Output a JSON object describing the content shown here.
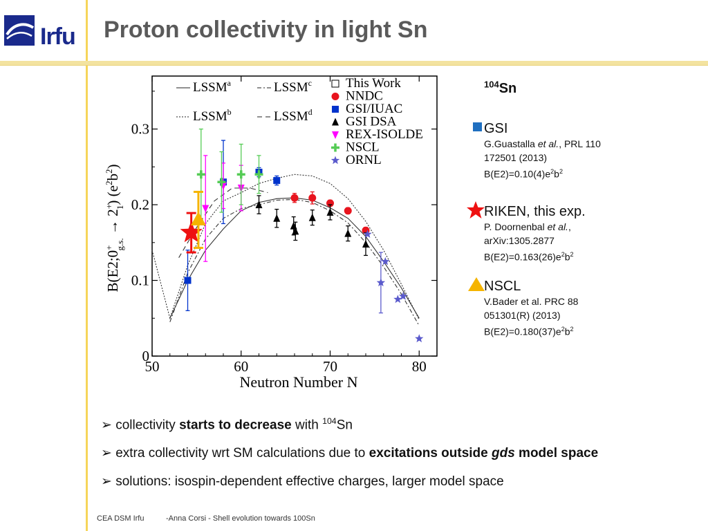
{
  "header": {
    "logo_text": "Irfu",
    "title": "Proton collectivity in light Sn"
  },
  "side": {
    "nucleus_mass": "104",
    "nucleus_symbol": "Sn",
    "gsi": {
      "label": "GSI",
      "ref_author": "G.Guastalla ",
      "ref_etal": "et al.",
      "ref_rest": ", PRL 110",
      "ref_line2": "172501  (2013)",
      "value_prefix": "B(E2)=0.10(4)e",
      "value_sup1": "2",
      "value_b": "b",
      "value_sup2": "2"
    },
    "riken": {
      "label": "RIKEN, this exp.",
      "ref_author": "P. Doornenbal ",
      "ref_etal": "et al.",
      "ref_comma": ",",
      "ref_line2": "arXiv:1305.2877",
      "value_prefix": "B(E2)=0.163(26)e",
      "value_sup1": "2",
      "value_b": "b",
      "value_sup2": "2"
    },
    "nscl": {
      "label": "NSCL",
      "ref_line1": "V.Bader et al. PRC 88",
      "ref_line2": "051301(R) (2013)",
      "value_prefix": "B(E2)=0.180(37)e",
      "value_sup1": "2",
      "value_b": "b",
      "value_sup2": "2"
    }
  },
  "bullets": {
    "b1_pre": "collectivity ",
    "b1_bold": "starts to decrease",
    "b1_post": " with ",
    "b1_sup": "104",
    "b1_end": "Sn",
    "b2_pre": "extra collectivity wrt SM calculations due to ",
    "b2_bold1": "excitations outside ",
    "b2_bolditalic": "gds",
    "b2_bold2": " model space",
    "b3": "solutions: isospin-dependent effective charges, larger model space"
  },
  "footer": {
    "left": "CEA DSM Irfu",
    "center": "-Anna Corsi -   Shell evolution towards 100Sn"
  },
  "colors": {
    "title": "#5a5a5a",
    "gsi": "#0033cc",
    "nndc": "#e8141e",
    "dsa": "#000000",
    "rex": "#ff00ff",
    "nscl_green": "#55cc55",
    "ornl": "#5a5acc",
    "riken_star": "#ee1111",
    "nscl_triangle": "#f5b400"
  },
  "chart_data": {
    "type": "scatter",
    "xlabel": "Neutron Number N",
    "ylabel": "B(E2;0+g.s. → 2+1) (e2b2)",
    "ylabel_parts": {
      "pre": "B(E2;0",
      "sup1": "+",
      "sub1": "g.s.",
      "arrow": " → 2",
      "sup2": "+",
      "sub2": "1",
      "post": ") (e",
      "sup3": "2",
      "b": "b",
      "sup4": "2",
      "close": ")"
    },
    "xlim": [
      50,
      82
    ],
    "ylim": [
      0,
      0.37
    ],
    "xticks": [
      50,
      60,
      70,
      80
    ],
    "yticks": [
      0,
      0.1,
      0.2,
      0.3
    ],
    "ytick_labels": [
      "0",
      "0.1",
      "0.2",
      "0.3"
    ],
    "legend": [
      {
        "label": "LSSM",
        "sup": "a",
        "style": "solid"
      },
      {
        "label": "LSSM",
        "sup": "b",
        "style": "dotted"
      },
      {
        "label": "LSSM",
        "sup": "c",
        "style": "dashdot"
      },
      {
        "label": "LSSM",
        "sup": "d",
        "style": "dashed"
      },
      {
        "label": "This Work",
        "marker": "open-square",
        "color": "#000000"
      },
      {
        "label": "NNDC",
        "marker": "circle",
        "color": "#e8141e"
      },
      {
        "label": "GSI/IUAC",
        "marker": "square",
        "color": "#0033cc"
      },
      {
        "label": "GSI DSA",
        "marker": "triangle-up",
        "color": "#000000"
      },
      {
        "label": "REX-ISOLDE",
        "marker": "triangle-down",
        "color": "#ff00ff"
      },
      {
        "label": "NSCL",
        "marker": "plus",
        "color": "#55cc55"
      },
      {
        "label": "ORNL",
        "marker": "star",
        "color": "#5a5acc"
      }
    ],
    "series": [
      {
        "name": "GSI/IUAC",
        "marker": "square",
        "color": "#0033cc",
        "points": [
          {
            "x": 54,
            "y": 0.1,
            "err": 0.04
          },
          {
            "x": 58,
            "y": 0.23,
            "err": 0.055
          },
          {
            "x": 62,
            "y": 0.243,
            "err": 0.006
          },
          {
            "x": 64,
            "y": 0.232,
            "err": 0.006
          }
        ]
      },
      {
        "name": "NNDC",
        "marker": "circle",
        "color": "#e8141e",
        "points": [
          {
            "x": 66,
            "y": 0.209,
            "err": 0.006
          },
          {
            "x": 68,
            "y": 0.209,
            "err": 0.008
          },
          {
            "x": 70,
            "y": 0.202,
            "err": 0.004
          },
          {
            "x": 72,
            "y": 0.192,
            "err": 0.004
          },
          {
            "x": 74,
            "y": 0.166,
            "err": 0.004
          }
        ]
      },
      {
        "name": "GSI DSA",
        "marker": "triangle-up",
        "color": "#000000",
        "points": [
          {
            "x": 62,
            "y": 0.2,
            "err": 0.012
          },
          {
            "x": 64,
            "y": 0.182,
            "err": 0.012
          },
          {
            "x": 65.9,
            "y": 0.172,
            "err": 0.012
          },
          {
            "x": 66.1,
            "y": 0.165,
            "err": 0.012
          },
          {
            "x": 68,
            "y": 0.183,
            "err": 0.01
          },
          {
            "x": 70,
            "y": 0.19,
            "err": 0.01
          },
          {
            "x": 72,
            "y": 0.162,
            "err": 0.01
          },
          {
            "x": 74,
            "y": 0.148,
            "err": 0.015
          }
        ]
      },
      {
        "name": "REX-ISOLDE",
        "marker": "triangle-down",
        "color": "#ff00ff",
        "points": [
          {
            "x": 56,
            "y": 0.195,
            "err": 0.07
          },
          {
            "x": 58,
            "y": 0.225,
            "err": 0.03
          },
          {
            "x": 60,
            "y": 0.222,
            "err": 0.03
          }
        ]
      },
      {
        "name": "NSCL",
        "marker": "plus",
        "color": "#55cc55",
        "points": [
          {
            "x": 55.5,
            "y": 0.24,
            "err": 0.06
          },
          {
            "x": 57.8,
            "y": 0.23,
            "err": 0.04
          },
          {
            "x": 60,
            "y": 0.24,
            "err": 0.04
          },
          {
            "x": 62,
            "y": 0.24,
            "err": 0.025
          }
        ]
      },
      {
        "name": "ORNL",
        "marker": "star",
        "color": "#5a5acc",
        "points": [
          {
            "x": 74.2,
            "y": 0.161,
            "err": 0.0
          },
          {
            "x": 75.7,
            "y": 0.097,
            "err": 0.04
          },
          {
            "x": 76.2,
            "y": 0.125,
            "err": 0.0
          },
          {
            "x": 77.6,
            "y": 0.075,
            "err": 0.0
          },
          {
            "x": 78.2,
            "y": 0.079,
            "err": 0.0
          },
          {
            "x": 80,
            "y": 0.023,
            "err": 0.0
          }
        ]
      },
      {
        "name": "RIKEN, this exp.",
        "marker": "big-star",
        "color": "#ee1111",
        "points": [
          {
            "x": 54.4,
            "y": 0.163,
            "err": 0.026
          }
        ]
      },
      {
        "name": "NSCL 104Sn",
        "marker": "big-triangle",
        "color": "#f5b400",
        "points": [
          {
            "x": 55.2,
            "y": 0.18,
            "err": 0.037
          }
        ]
      }
    ],
    "curves": [
      {
        "name": "LSSM a",
        "style": "solid",
        "x": [
          52,
          54,
          56,
          58,
          60,
          62,
          64,
          66,
          68,
          70,
          72,
          74,
          76,
          78,
          80
        ],
        "y": [
          0.05,
          0.1,
          0.14,
          0.168,
          0.192,
          0.203,
          0.208,
          0.209,
          0.206,
          0.196,
          0.182,
          0.158,
          0.125,
          0.09,
          0.05
        ]
      },
      {
        "name": "LSSM b",
        "style": "dotted",
        "x": [
          50,
          52,
          54,
          56,
          58,
          60,
          62,
          64,
          66,
          68,
          70,
          72,
          74,
          76,
          78,
          80
        ],
        "y": [
          0.14,
          0.05,
          0.12,
          0.175,
          0.205,
          0.216,
          0.228,
          0.235,
          0.24,
          0.238,
          0.228,
          0.208,
          0.178,
          0.14,
          0.095,
          0.048
        ]
      },
      {
        "name": "LSSM c",
        "style": "dashdot",
        "x": [
          52,
          54,
          56,
          58,
          60,
          62,
          64,
          66,
          68,
          70,
          72,
          74,
          76,
          78,
          80
        ],
        "y": [
          0.045,
          0.11,
          0.155,
          0.182,
          0.195,
          0.2,
          0.206,
          0.207,
          0.203,
          0.192,
          0.176,
          0.15,
          0.118,
          0.082,
          0.04
        ]
      },
      {
        "name": "LSSM d",
        "style": "dashed",
        "x": [
          53,
          55,
          57,
          59,
          61,
          63
        ],
        "y": [
          0.13,
          0.17,
          0.205,
          0.222,
          0.222,
          0.216
        ]
      }
    ]
  }
}
